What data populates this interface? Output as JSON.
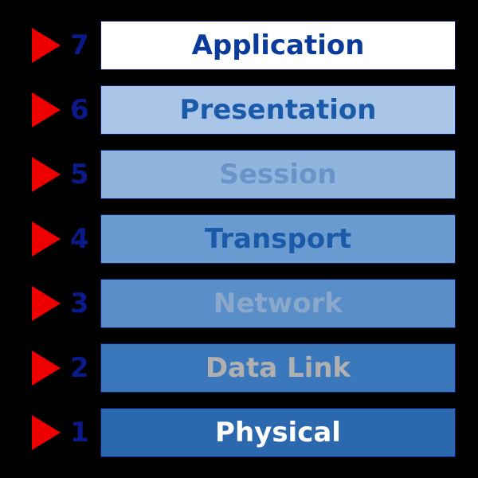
{
  "diagram": {
    "type": "infographic",
    "background_color": "#000000",
    "arrow_color": "#ee0000",
    "number_color": "#0a1a8a",
    "layer_border_color": "#0a1a6a",
    "title_fontsize": 34,
    "font_weight": 700,
    "layers": [
      {
        "num": "7",
        "label": "Application",
        "bg": "#ffffff",
        "text": "#0a3a9a"
      },
      {
        "num": "6",
        "label": "Presentation",
        "bg": "#a9c5e8",
        "text": "#1a5aa8"
      },
      {
        "num": "5",
        "label": "Session",
        "bg": "#8fb4de",
        "text": "#6a93c8"
      },
      {
        "num": "4",
        "label": "Transport",
        "bg": "#6a9bd0",
        "text": "#1a5aa8"
      },
      {
        "num": "3",
        "label": "Network",
        "bg": "#5a8ec8",
        "text": "#8aa8cc"
      },
      {
        "num": "2",
        "label": "Data Link",
        "bg": "#3b78bb",
        "text": "#b0b0b0"
      },
      {
        "num": "1",
        "label": "Physical",
        "bg": "#2c68ae",
        "text": "#ffffff"
      }
    ]
  }
}
